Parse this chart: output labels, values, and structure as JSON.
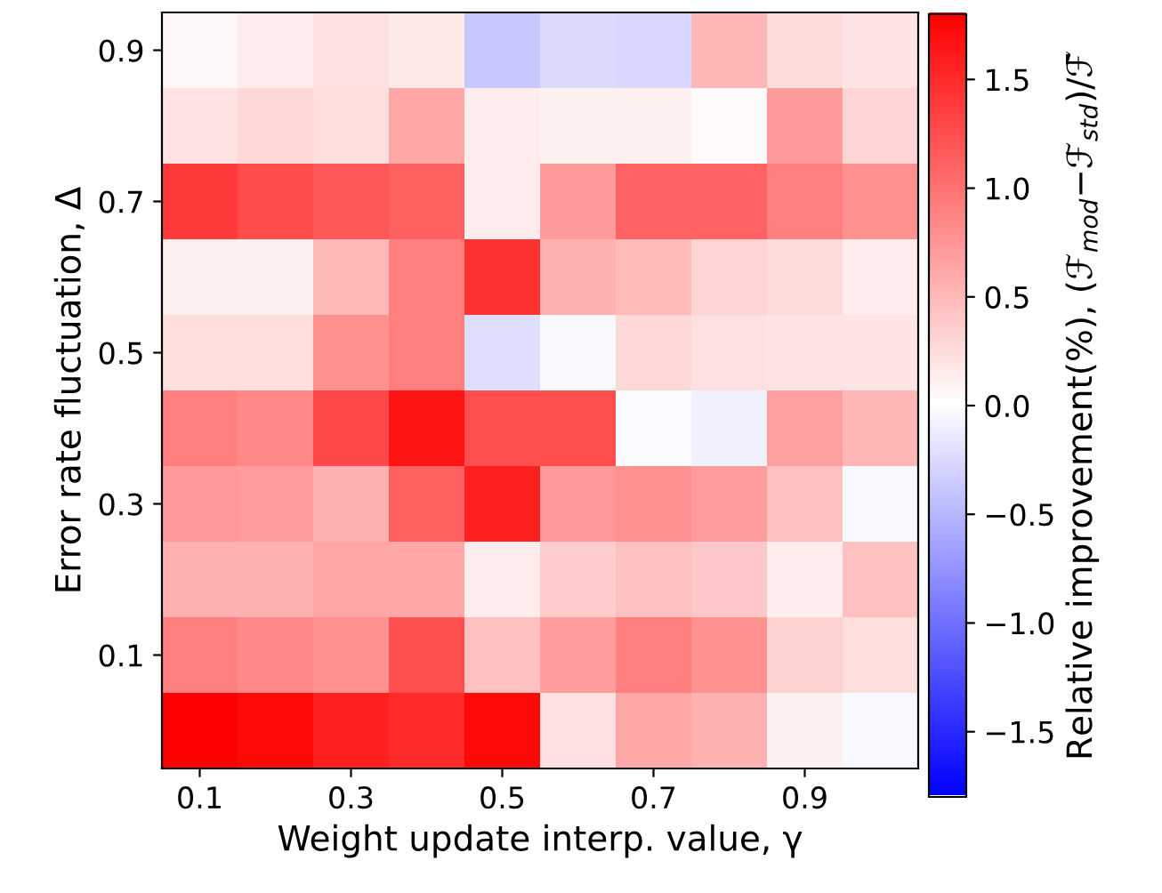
{
  "chart_data": {
    "type": "heatmap",
    "xlabel": "Weight update interp. value, γ",
    "ylabel": "Error rate fluctuation, Δ",
    "clabel": "Relative improvement(%), (ℱ$_{mod}$−ℱ$_{std}$)/ℱ̄",
    "categories": [
      "0.1",
      null,
      "0.3",
      null,
      "0.5",
      null,
      "0.7",
      null,
      "0.9",
      null
    ],
    "y_categories": [
      "0.9",
      null,
      "0.7",
      null,
      "0.5",
      null,
      "0.3",
      null,
      "0.1",
      null
    ],
    "cells": [
      [
        0.05,
        0.14,
        0.22,
        0.15,
        -0.39,
        -0.26,
        -0.27,
        0.52,
        0.25,
        0.19
      ],
      [
        0.21,
        0.27,
        0.23,
        0.63,
        0.14,
        0.11,
        0.11,
        0.04,
        0.71,
        0.3
      ],
      [
        1.38,
        1.26,
        1.17,
        1.12,
        0.14,
        0.71,
        1.11,
        1.11,
        0.9,
        0.78
      ],
      [
        0.11,
        0.11,
        0.5,
        0.9,
        1.44,
        0.56,
        0.48,
        0.3,
        0.25,
        0.14
      ],
      [
        0.23,
        0.23,
        0.78,
        0.9,
        -0.23,
        -0.05,
        0.27,
        0.22,
        0.19,
        0.19
      ],
      [
        0.9,
        0.84,
        1.29,
        1.65,
        1.24,
        1.24,
        -0.03,
        -0.11,
        0.67,
        0.52
      ],
      [
        0.73,
        0.7,
        0.55,
        1.12,
        1.57,
        0.72,
        0.78,
        0.7,
        0.44,
        -0.05
      ],
      [
        0.55,
        0.55,
        0.63,
        0.63,
        0.14,
        0.36,
        0.44,
        0.39,
        0.14,
        0.44
      ],
      [
        0.9,
        0.84,
        0.78,
        1.24,
        0.44,
        0.7,
        0.9,
        0.78,
        0.32,
        0.23
      ],
      [
        1.8,
        1.73,
        1.57,
        1.5,
        1.73,
        0.22,
        0.63,
        0.56,
        0.11,
        -0.05
      ]
    ],
    "clim": [
      -1.8,
      1.8
    ],
    "cticks": [
      {
        "value": -1.5,
        "label": "−1.5"
      },
      {
        "value": -1.0,
        "label": "−1.0"
      },
      {
        "value": -0.5,
        "label": "−0.5"
      },
      {
        "value": 0,
        "label": "0.0"
      },
      0.5,
      {
        "value": 1,
        "label": "1.0"
      },
      1.5
    ]
  }
}
